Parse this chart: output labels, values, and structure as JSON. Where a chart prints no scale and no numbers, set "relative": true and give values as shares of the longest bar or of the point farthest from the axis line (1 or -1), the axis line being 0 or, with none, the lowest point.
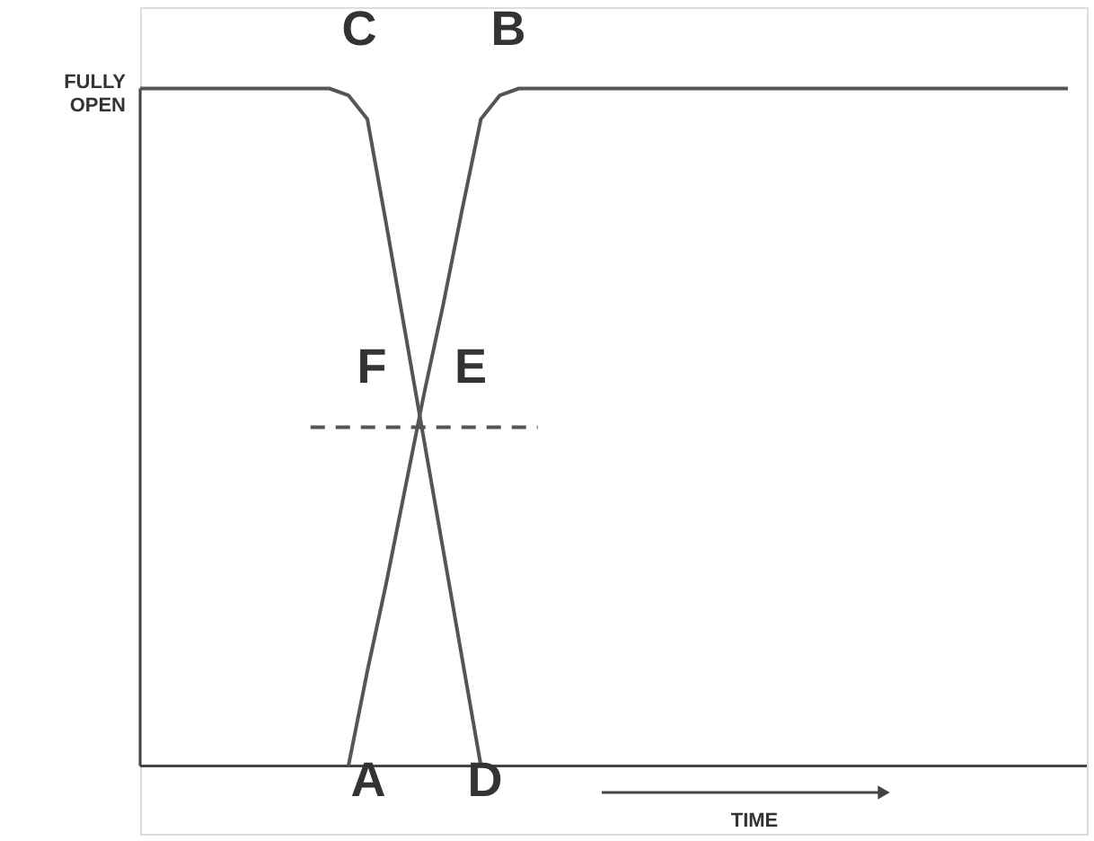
{
  "chart_data": {
    "type": "line",
    "relative": true,
    "tick_labels": false,
    "grid": false,
    "marker": "none",
    "ylabel": "FULLY OPEN",
    "xlabel": "TIME",
    "categories": [
      null,
      null,
      null,
      null,
      null,
      null,
      null,
      null,
      null,
      null,
      null,
      null,
      null,
      null,
      null,
      null,
      null,
      null,
      null,
      null,
      null,
      null,
      null,
      null,
      null,
      null,
      null,
      null,
      null,
      null,
      null,
      null,
      null,
      null,
      null,
      null,
      null,
      null,
      null,
      null,
      null,
      null,
      null,
      null,
      null,
      null,
      null,
      null,
      null,
      null,
      null
    ],
    "series": [
      {
        "color": "#555555",
        "line_style": "solid",
        "values": [
          1,
          1,
          1,
          1,
          1,
          1,
          1,
          1,
          1,
          1,
          1,
          0.99,
          0.955,
          0.8,
          0.64,
          0.48,
          0.32,
          0.16,
          0,
          null,
          null,
          null,
          null,
          null,
          null,
          null,
          null,
          null,
          null,
          null,
          null,
          null,
          null,
          null,
          null,
          null,
          null,
          null,
          null,
          null,
          null,
          null,
          null,
          null,
          null,
          null,
          null,
          null,
          null,
          null,
          null
        ]
      },
      {
        "color": "#555555",
        "line_style": "solid",
        "values": [
          null,
          null,
          null,
          null,
          null,
          null,
          null,
          null,
          null,
          null,
          null,
          0,
          0.14,
          0.27,
          0.41,
          0.55,
          0.68,
          0.82,
          0.955,
          0.99,
          1,
          1,
          1,
          1,
          1,
          1,
          1,
          1,
          1,
          1,
          1,
          1,
          1,
          1,
          1,
          1,
          1,
          1,
          1,
          1,
          1,
          1,
          1,
          1,
          1,
          1,
          1,
          1,
          1,
          1,
          null
        ]
      },
      {
        "color": "#555555",
        "line_style": "dashed",
        "values": [
          null,
          null,
          null,
          null,
          null,
          null,
          null,
          null,
          null,
          0.5,
          0.5,
          0.5,
          0.5,
          0.5,
          0.5,
          0.5,
          0.5,
          0.5,
          0.5,
          0.5,
          0.5,
          0.5,
          null,
          null,
          null,
          null,
          null,
          null,
          null,
          null,
          null,
          null,
          null,
          null,
          null,
          null,
          null,
          null,
          null,
          null,
          null,
          null,
          null,
          null,
          null,
          null,
          null,
          null,
          null,
          null,
          null
        ]
      }
    ],
    "annotations": [
      "C",
      "B",
      "F",
      "E",
      "A",
      "D"
    ]
  }
}
